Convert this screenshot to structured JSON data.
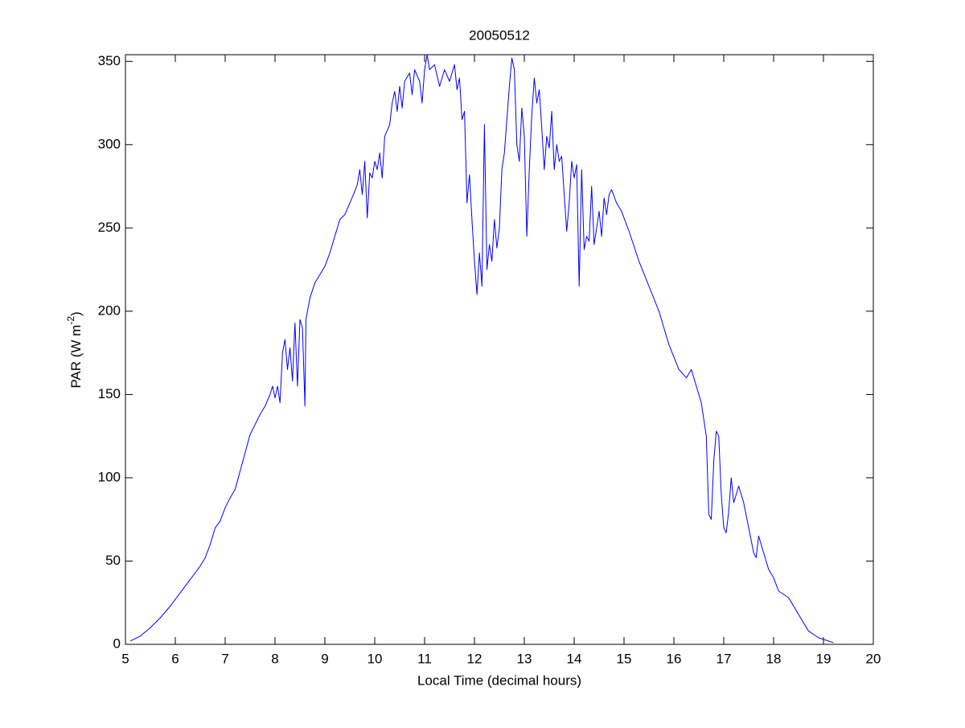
{
  "chart_data": {
    "type": "line",
    "title": "20050512",
    "xlabel": "Local Time (decimal hours)",
    "ylabel_parts": [
      "PAR (W m",
      "-2",
      ")"
    ],
    "xlim": [
      5,
      20
    ],
    "xticks": [
      5,
      6,
      7,
      8,
      9,
      10,
      11,
      12,
      13,
      14,
      15,
      16,
      17,
      18,
      19,
      20
    ],
    "ylim": [
      0,
      354
    ],
    "yticks": [
      0,
      50,
      100,
      150,
      200,
      250,
      300,
      350
    ],
    "series": [
      {
        "color": "#0000ff",
        "x": [
          5.1,
          5.3,
          5.5,
          5.7,
          5.9,
          6.1,
          6.3,
          6.5,
          6.6,
          6.7,
          6.8,
          6.9,
          7.0,
          7.1,
          7.2,
          7.3,
          7.4,
          7.5,
          7.6,
          7.65,
          7.7,
          7.8,
          7.9,
          7.95,
          8.0,
          8.05,
          8.1,
          8.15,
          8.2,
          8.25,
          8.3,
          8.35,
          8.4,
          8.45,
          8.5,
          8.55,
          8.6,
          8.62,
          8.7,
          8.8,
          8.9,
          9.0,
          9.1,
          9.2,
          9.3,
          9.4,
          9.5,
          9.6,
          9.65,
          9.7,
          9.75,
          9.8,
          9.85,
          9.9,
          9.95,
          10.0,
          10.05,
          10.1,
          10.15,
          10.2,
          10.3,
          10.35,
          10.4,
          10.45,
          10.5,
          10.55,
          10.6,
          10.7,
          10.75,
          10.8,
          10.9,
          10.95,
          11.0,
          11.05,
          11.1,
          11.2,
          11.3,
          11.4,
          11.5,
          11.6,
          11.65,
          11.7,
          11.75,
          11.8,
          11.85,
          11.9,
          11.95,
          12.0,
          12.05,
          12.1,
          12.15,
          12.2,
          12.25,
          12.3,
          12.35,
          12.4,
          12.45,
          12.5,
          12.55,
          12.6,
          12.7,
          12.75,
          12.8,
          12.85,
          12.9,
          12.95,
          13.0,
          13.05,
          13.1,
          13.15,
          13.2,
          13.25,
          13.3,
          13.35,
          13.4,
          13.45,
          13.5,
          13.55,
          13.6,
          13.65,
          13.7,
          13.75,
          13.8,
          13.85,
          13.9,
          13.95,
          14.0,
          14.05,
          14.1,
          14.15,
          14.2,
          14.25,
          14.3,
          14.35,
          14.4,
          14.5,
          14.55,
          14.6,
          14.65,
          14.7,
          14.75,
          14.85,
          14.95,
          15.1,
          15.3,
          15.5,
          15.7,
          15.9,
          16.1,
          16.25,
          16.35,
          16.45,
          16.55,
          16.65,
          16.7,
          16.75,
          16.8,
          16.85,
          16.9,
          16.95,
          17.0,
          17.05,
          17.1,
          17.15,
          17.2,
          17.3,
          17.4,
          17.5,
          17.6,
          17.65,
          17.7,
          17.8,
          17.9,
          18.0,
          18.1,
          18.2,
          18.3,
          18.5,
          18.7,
          18.9,
          19.2
        ],
        "values": [
          2,
          5,
          10,
          16,
          23,
          31,
          39,
          47,
          52,
          60,
          70,
          74,
          82,
          88,
          93,
          104,
          115,
          126,
          132,
          135,
          138,
          143,
          150,
          155,
          148,
          155,
          145,
          175,
          183,
          165,
          178,
          158,
          193,
          155,
          195,
          190,
          143,
          195,
          208,
          217,
          222,
          227,
          235,
          245,
          255,
          258,
          265,
          272,
          276,
          285,
          270,
          290,
          256,
          283,
          280,
          290,
          285,
          295,
          280,
          305,
          312,
          325,
          332,
          320,
          335,
          322,
          338,
          343,
          330,
          345,
          338,
          325,
          345,
          354,
          345,
          348,
          335,
          345,
          338,
          348,
          333,
          340,
          315,
          320,
          265,
          282,
          255,
          230,
          210,
          235,
          215,
          312,
          225,
          240,
          230,
          255,
          238,
          250,
          285,
          295,
          335,
          352,
          345,
          300,
          290,
          322,
          305,
          245,
          285,
          318,
          340,
          325,
          333,
          310,
          285,
          305,
          298,
          320,
          285,
          300,
          290,
          293,
          270,
          248,
          265,
          290,
          280,
          288,
          215,
          285,
          237,
          245,
          242,
          275,
          240,
          260,
          245,
          268,
          258,
          270,
          273,
          265,
          260,
          248,
          230,
          215,
          200,
          180,
          165,
          160,
          165,
          155,
          145,
          125,
          78,
          75,
          110,
          128,
          125,
          90,
          70,
          67,
          80,
          100,
          85,
          95,
          85,
          70,
          55,
          52,
          65,
          55,
          45,
          40,
          32,
          30,
          28,
          18,
          8,
          4,
          1
        ]
      }
    ]
  }
}
